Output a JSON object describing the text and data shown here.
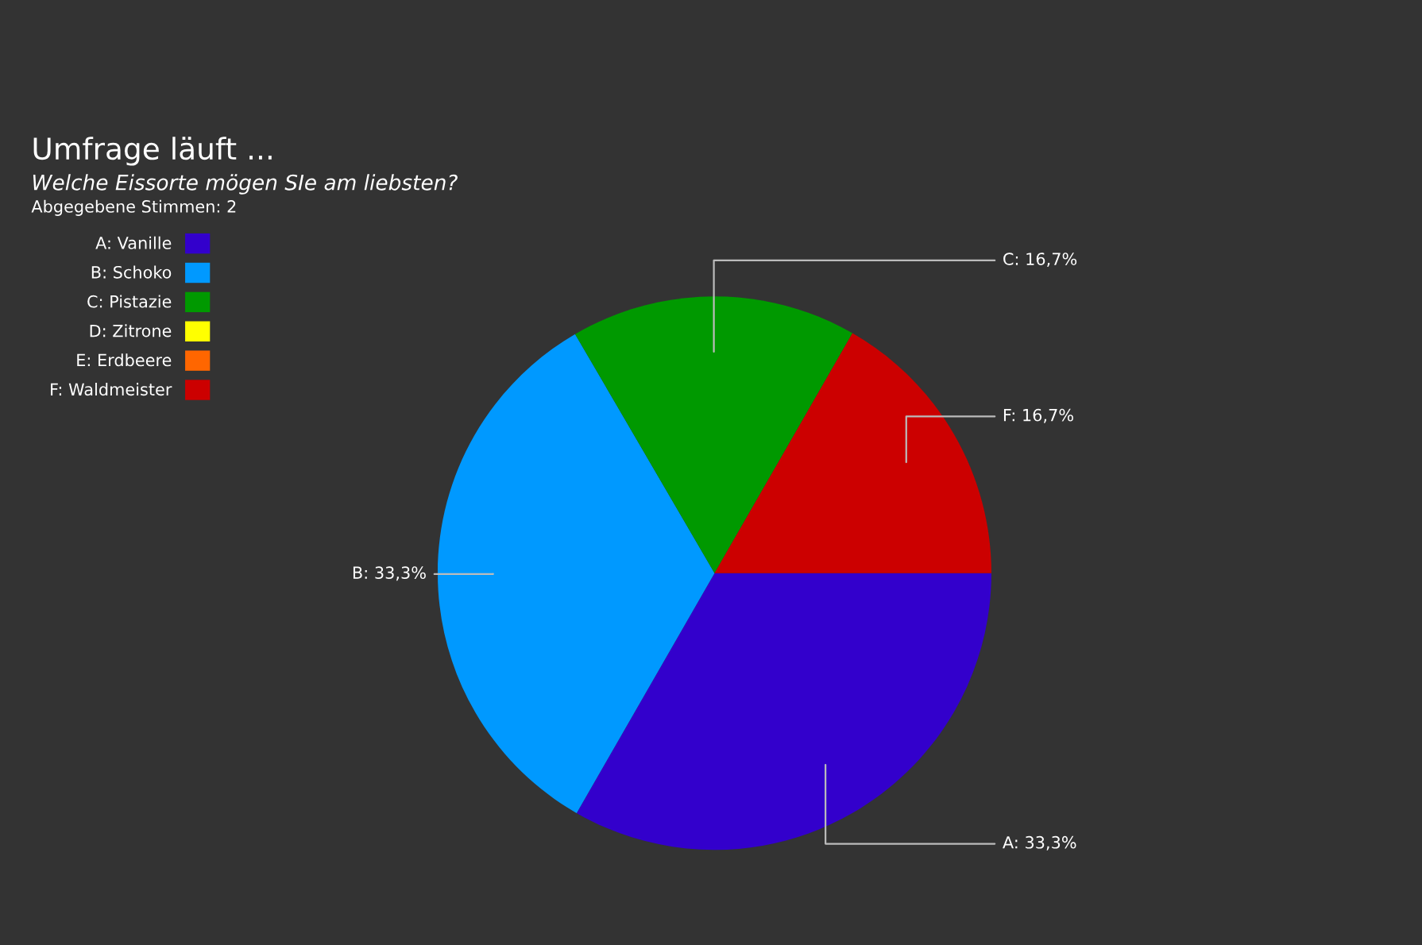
{
  "chart_data": {
    "type": "pie",
    "title": "Umfrage läuft ...",
    "subtitle": "Welche Eissorte mögen SIe am liebsten?",
    "annotations": [
      "Abgegebene Stimmen: 2"
    ],
    "categories": [
      "A: Vanille",
      "B: Schoko",
      "C: Pistazie",
      "D: Zitrone",
      "E: Erdbeere",
      "F: Waldmeister"
    ],
    "values": [
      33.3,
      33.3,
      16.7,
      0,
      0,
      16.7
    ],
    "value_labels": [
      "A: 33,3%",
      "B: 33,3%",
      "C: 16,7%",
      null,
      null,
      "F: 16,7%"
    ],
    "colors": [
      "#3300cc",
      "#0099ff",
      "#009900",
      "#ffff00",
      "#ff6600",
      "#cc0000"
    ],
    "legend": "top left"
  }
}
